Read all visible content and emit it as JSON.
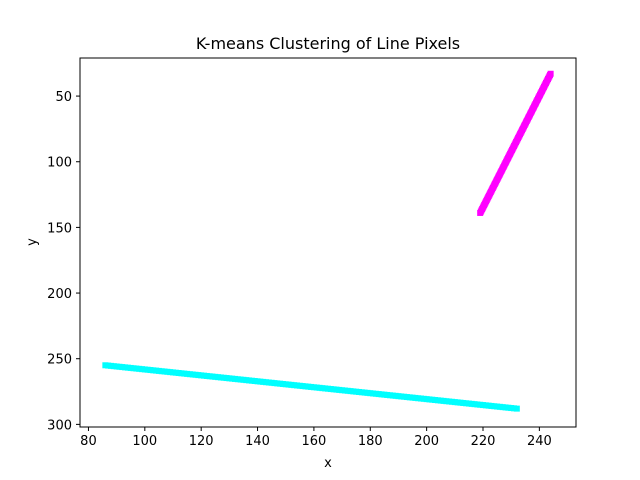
{
  "chart_data": {
    "type": "scatter",
    "title": "K-means Clustering of Line Pixels",
    "xlabel": "x",
    "ylabel": "y",
    "xlim": [
      77,
      253
    ],
    "ylim": [
      302,
      21
    ],
    "y_inverted": true,
    "grid": false,
    "legend": "none",
    "xticks": [
      80,
      100,
      120,
      140,
      160,
      180,
      200,
      220,
      240
    ],
    "yticks": [
      50,
      100,
      150,
      200,
      250,
      300
    ],
    "series": [
      {
        "color": "#00ffff",
        "marker": "square",
        "line_start": [
          86,
          255
        ],
        "line_end": [
          232,
          288
        ]
      },
      {
        "color": "#ff00ff",
        "marker": "square",
        "line_start": [
          219,
          139
        ],
        "line_end": [
          244,
          33
        ]
      }
    ]
  }
}
